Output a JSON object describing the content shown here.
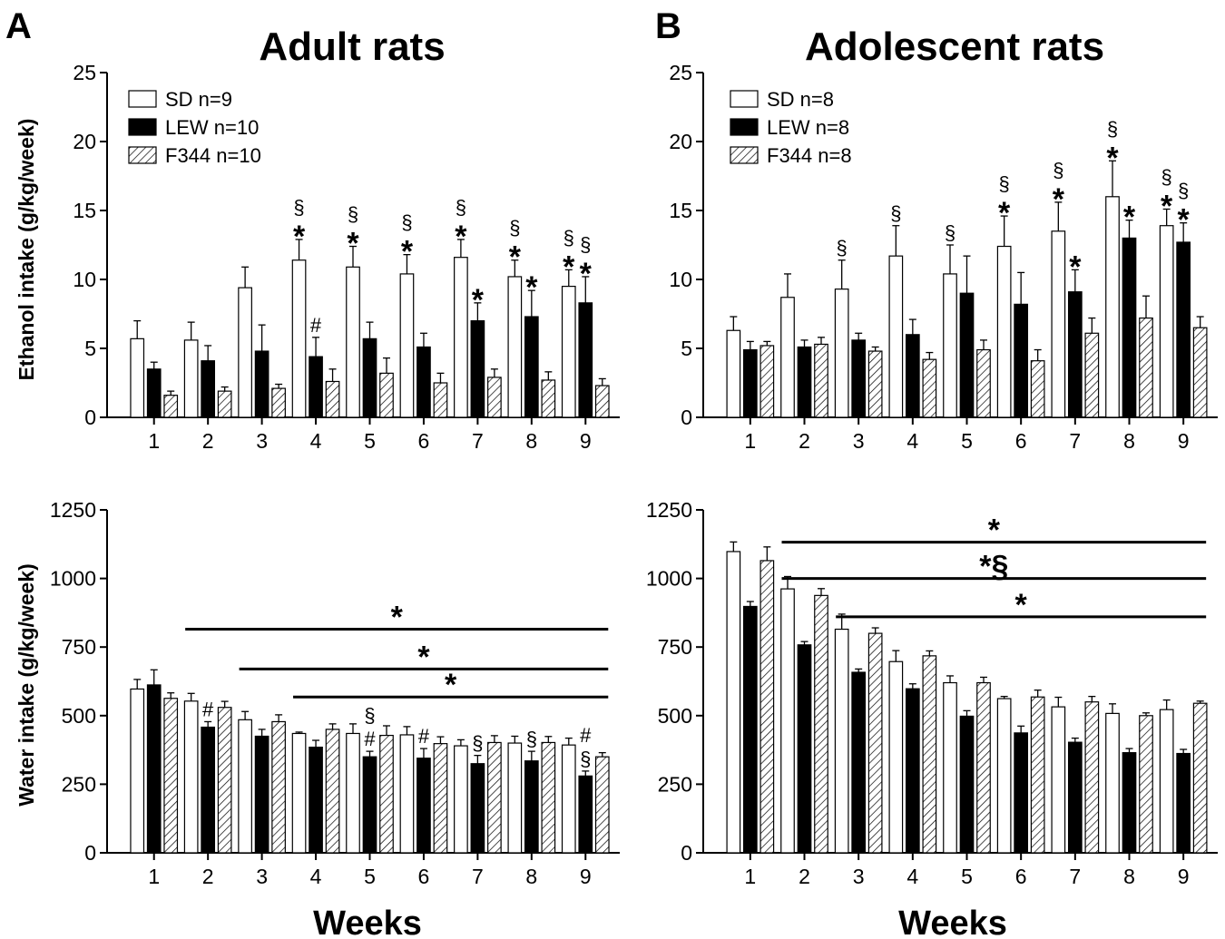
{
  "figure": {
    "panel_a_letter": "A",
    "panel_b_letter": "B",
    "panel_a_title": "Adult rats",
    "panel_b_title": "Adolescent rats",
    "xlabel": "Weeks",
    "ethanol_ylabel": "Ethanol intake (g/kg/week)",
    "water_ylabel": "Water intake (g/kg/week)"
  },
  "colors": {
    "SD": "#ffffff",
    "LEW": "#000000",
    "F344": "hatched",
    "axis": "#000000"
  },
  "chart_data": [
    {
      "id": "adult_ethanol",
      "type": "bar",
      "panel": "A",
      "title": "Adult rats",
      "xlabel": "",
      "ylabel": "Ethanol intake (g/kg/week)",
      "ylim": [
        0,
        25
      ],
      "yticks": [
        0,
        5,
        10,
        15,
        20,
        25
      ],
      "categories": [
        "1",
        "2",
        "3",
        "4",
        "5",
        "6",
        "7",
        "8",
        "9"
      ],
      "legend": [
        "SD n=9",
        "LEW n=10",
        "F344 n=10"
      ],
      "legend_position": "top-left",
      "series": [
        {
          "name": "SD",
          "values": [
            5.7,
            5.6,
            9.4,
            11.4,
            10.9,
            10.4,
            11.6,
            10.2,
            9.5
          ],
          "errors": [
            1.3,
            1.3,
            1.5,
            1.5,
            1.5,
            1.4,
            1.3,
            1.2,
            1.2
          ]
        },
        {
          "name": "LEW",
          "values": [
            3.5,
            4.1,
            4.8,
            4.4,
            5.7,
            5.1,
            7.0,
            7.3,
            8.3
          ],
          "errors": [
            0.5,
            1.1,
            1.9,
            1.4,
            1.2,
            1.0,
            1.3,
            1.9,
            1.9
          ]
        },
        {
          "name": "F344",
          "values": [
            1.6,
            1.9,
            2.1,
            2.6,
            3.2,
            2.5,
            2.9,
            2.7,
            2.3
          ],
          "errors": [
            0.3,
            0.3,
            0.3,
            0.9,
            1.1,
            0.7,
            0.6,
            0.6,
            0.5
          ]
        }
      ],
      "annotations": [
        {
          "week": 4,
          "series": "SD",
          "labels": [
            "§",
            "*"
          ]
        },
        {
          "week": 4,
          "series": "LEW",
          "labels": [
            "#"
          ]
        },
        {
          "week": 5,
          "series": "SD",
          "labels": [
            "§",
            "*"
          ]
        },
        {
          "week": 6,
          "series": "SD",
          "labels": [
            "§",
            "*"
          ]
        },
        {
          "week": 7,
          "series": "SD",
          "labels": [
            "§",
            "*"
          ]
        },
        {
          "week": 7,
          "series": "LEW",
          "labels": [
            "*"
          ]
        },
        {
          "week": 8,
          "series": "SD",
          "labels": [
            "§",
            "*"
          ]
        },
        {
          "week": 8,
          "series": "LEW",
          "labels": [
            "*"
          ]
        },
        {
          "week": 9,
          "series": "SD",
          "labels": [
            "§",
            "*"
          ]
        },
        {
          "week": 9,
          "series": "LEW",
          "labels": [
            "§",
            "*"
          ]
        }
      ],
      "brackets": []
    },
    {
      "id": "adolescent_ethanol",
      "type": "bar",
      "panel": "B",
      "title": "Adolescent rats",
      "xlabel": "",
      "ylabel": "",
      "ylim": [
        0,
        25
      ],
      "yticks": [
        0,
        5,
        10,
        15,
        20,
        25
      ],
      "categories": [
        "1",
        "2",
        "3",
        "4",
        "5",
        "6",
        "7",
        "8",
        "9"
      ],
      "legend": [
        "SD n=8",
        "LEW n=8",
        "F344 n=8"
      ],
      "legend_position": "top-left",
      "series": [
        {
          "name": "SD",
          "values": [
            6.3,
            8.7,
            9.3,
            11.7,
            10.4,
            12.4,
            13.5,
            16.0,
            13.9
          ],
          "errors": [
            1.0,
            1.7,
            2.1,
            2.2,
            2.1,
            2.2,
            2.1,
            2.6,
            1.2
          ]
        },
        {
          "name": "LEW",
          "values": [
            4.9,
            5.1,
            5.6,
            6.0,
            9.0,
            8.2,
            9.1,
            13.0,
            12.7
          ],
          "errors": [
            0.6,
            0.5,
            0.5,
            1.1,
            2.7,
            2.3,
            1.6,
            1.3,
            1.4
          ]
        },
        {
          "name": "F344",
          "values": [
            5.2,
            5.3,
            4.8,
            4.2,
            4.9,
            4.1,
            6.1,
            7.2,
            6.5
          ],
          "errors": [
            0.3,
            0.5,
            0.3,
            0.5,
            0.7,
            0.8,
            1.1,
            1.6,
            0.8
          ]
        }
      ],
      "annotations": [
        {
          "week": 3,
          "series": "SD",
          "labels": [
            "§"
          ]
        },
        {
          "week": 4,
          "series": "SD",
          "labels": [
            "§"
          ]
        },
        {
          "week": 5,
          "series": "SD",
          "labels": [
            "§"
          ]
        },
        {
          "week": 6,
          "series": "SD",
          "labels": [
            "§",
            "*"
          ]
        },
        {
          "week": 7,
          "series": "SD",
          "labels": [
            "§",
            "*"
          ]
        },
        {
          "week": 7,
          "series": "LEW",
          "labels": [
            "*"
          ]
        },
        {
          "week": 8,
          "series": "SD",
          "labels": [
            "§",
            "*"
          ]
        },
        {
          "week": 8,
          "series": "LEW",
          "labels": [
            "*"
          ]
        },
        {
          "week": 9,
          "series": "SD",
          "labels": [
            "§",
            "*"
          ]
        },
        {
          "week": 9,
          "series": "LEW",
          "labels": [
            "§",
            "*"
          ]
        }
      ],
      "brackets": []
    },
    {
      "id": "adult_water",
      "type": "bar",
      "panel": "A",
      "title": "",
      "xlabel": "Weeks",
      "ylabel": "Water intake (g/kg/week)",
      "ylim": [
        0,
        1250
      ],
      "yticks": [
        0,
        250,
        500,
        750,
        1000,
        1250
      ],
      "categories": [
        "1",
        "2",
        "3",
        "4",
        "5",
        "6",
        "7",
        "8",
        "9"
      ],
      "legend": [],
      "series": [
        {
          "name": "SD",
          "values": [
            597,
            553,
            485,
            435,
            435,
            430,
            390,
            400,
            393
          ],
          "errors": [
            35,
            28,
            30,
            5,
            35,
            30,
            22,
            25,
            25
          ]
        },
        {
          "name": "LEW",
          "values": [
            612,
            458,
            425,
            385,
            350,
            345,
            325,
            335,
            280
          ],
          "errors": [
            55,
            20,
            25,
            25,
            20,
            35,
            30,
            35,
            18
          ]
        },
        {
          "name": "F344",
          "values": [
            563,
            530,
            478,
            450,
            428,
            398,
            402,
            402,
            350
          ],
          "errors": [
            20,
            22,
            25,
            20,
            35,
            25,
            25,
            22,
            15
          ]
        }
      ],
      "annotations": [
        {
          "week": 2,
          "series": "LEW",
          "labels": [
            "#"
          ]
        },
        {
          "week": 5,
          "series": "LEW",
          "labels": [
            "§",
            "#"
          ]
        },
        {
          "week": 6,
          "series": "LEW",
          "labels": [
            "#"
          ]
        },
        {
          "week": 7,
          "series": "LEW",
          "labels": [
            "§"
          ]
        },
        {
          "week": 8,
          "series": "LEW",
          "labels": [
            "§"
          ]
        },
        {
          "week": 9,
          "series": "LEW",
          "labels": [
            "#",
            "§"
          ]
        }
      ],
      "brackets": [
        {
          "label": "*",
          "from_week": 2,
          "to_week": 9,
          "value": 815
        },
        {
          "label": "*",
          "from_week": 3,
          "to_week": 9,
          "value": 670
        },
        {
          "label": "*",
          "from_week": 4,
          "to_week": 9,
          "value": 568
        }
      ]
    },
    {
      "id": "adolescent_water",
      "type": "bar",
      "panel": "B",
      "title": "",
      "xlabel": "Weeks",
      "ylabel": "",
      "ylim": [
        0,
        1250
      ],
      "yticks": [
        0,
        250,
        500,
        750,
        1000,
        1250
      ],
      "categories": [
        "1",
        "2",
        "3",
        "4",
        "5",
        "6",
        "7",
        "8",
        "9"
      ],
      "legend": [],
      "series": [
        {
          "name": "SD",
          "values": [
            1098,
            962,
            815,
            697,
            620,
            562,
            532,
            508,
            522
          ],
          "errors": [
            35,
            45,
            55,
            40,
            25,
            8,
            35,
            35,
            35
          ]
        },
        {
          "name": "LEW",
          "values": [
            898,
            758,
            658,
            598,
            498,
            437,
            403,
            365,
            362
          ],
          "errors": [
            18,
            12,
            12,
            18,
            20,
            25,
            15,
            15,
            15
          ]
        },
        {
          "name": "F344",
          "values": [
            1065,
            938,
            800,
            718,
            620,
            568,
            550,
            500,
            545
          ],
          "errors": [
            50,
            25,
            20,
            18,
            20,
            25,
            20,
            10,
            8
          ]
        }
      ],
      "annotations": [],
      "brackets": [
        {
          "label": "*",
          "from_week": 2,
          "to_week": 9,
          "value": 1132
        },
        {
          "label": "*§",
          "from_week": 2,
          "to_week": 9,
          "value": 1000
        },
        {
          "label": "*",
          "from_week": 3,
          "to_week": 9,
          "value": 860
        }
      ]
    }
  ]
}
